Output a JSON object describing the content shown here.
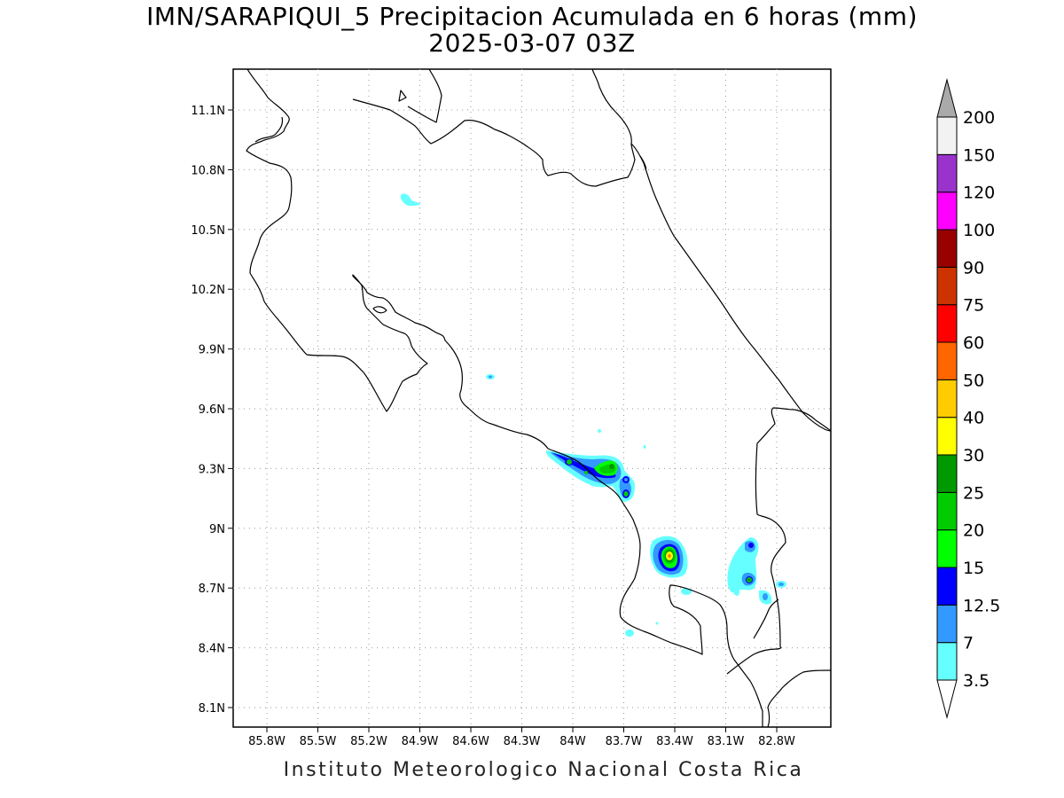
{
  "title_line1": "IMN/SARAPIQUI_5 Precipitacion Acumulada en 6 horas (mm)",
  "title_line2": "2025-03-07 03Z",
  "footer": "Instituto Meteorologico Nacional Costa Rica",
  "map": {
    "lon_ticks": [
      "85.8W",
      "85.5W",
      "85.2W",
      "84.9W",
      "84.6W",
      "84.3W",
      "84W",
      "83.7W",
      "83.4W",
      "83.1W",
      "82.8W"
    ],
    "lat_ticks": [
      "11.1N",
      "10.8N",
      "10.5N",
      "10.2N",
      "9.9N",
      "9.6N",
      "9.3N",
      "9N",
      "8.7N",
      "8.4N",
      "8.1N"
    ]
  },
  "colorbar": {
    "labels": [
      "3.5",
      "7",
      "12.5",
      "15",
      "20",
      "25",
      "30",
      "40",
      "50",
      "60",
      "75",
      "90",
      "100",
      "120",
      "150",
      "200"
    ],
    "colors": [
      "#66ffff",
      "#3399ff",
      "#0000ff",
      "#00ff00",
      "#00cc00",
      "#009900",
      "#ffff00",
      "#ffcc00",
      "#ff6600",
      "#ff0000",
      "#cc3300",
      "#990000",
      "#ff00ff",
      "#9933cc",
      "#f2f2f2",
      "#aaaaaa"
    ]
  }
}
